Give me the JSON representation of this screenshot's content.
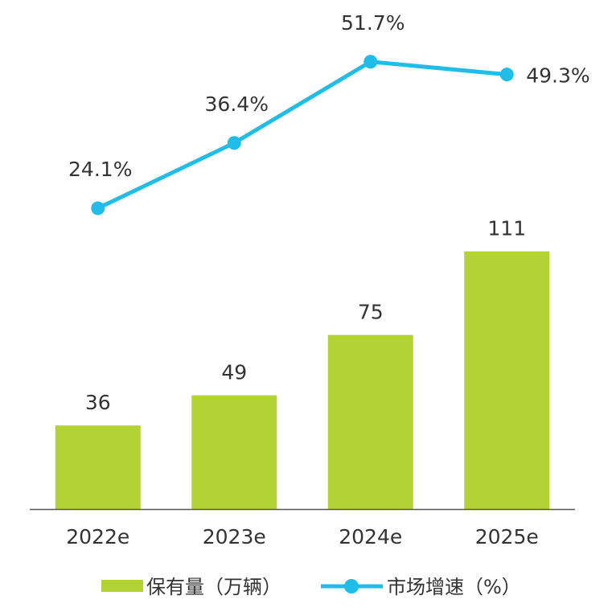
{
  "colors": {
    "bar": "#b3d235",
    "line": "#1fbde8",
    "axis": "#555555",
    "text": "#333333"
  },
  "chart_data": {
    "type": "bar",
    "title": "",
    "xlabel": "",
    "ylabel": "",
    "grid": false,
    "categories": [
      "2022e",
      "2023e",
      "2024e",
      "2025e"
    ],
    "series": [
      {
        "name": "保有量（万辆）",
        "type": "bar",
        "values": [
          36,
          49,
          75,
          111
        ],
        "labels": [
          "36",
          "49",
          "75",
          "111"
        ],
        "ylim": [
          0,
          115
        ]
      },
      {
        "name": "市场增速（%）",
        "type": "line",
        "values": [
          24.1,
          36.4,
          51.7,
          49.3
        ],
        "labels": [
          "24.1%",
          "36.4%",
          "51.7%",
          "49.3%"
        ],
        "ylim": [
          20,
          55
        ]
      }
    ],
    "legend_position": "bottom"
  }
}
